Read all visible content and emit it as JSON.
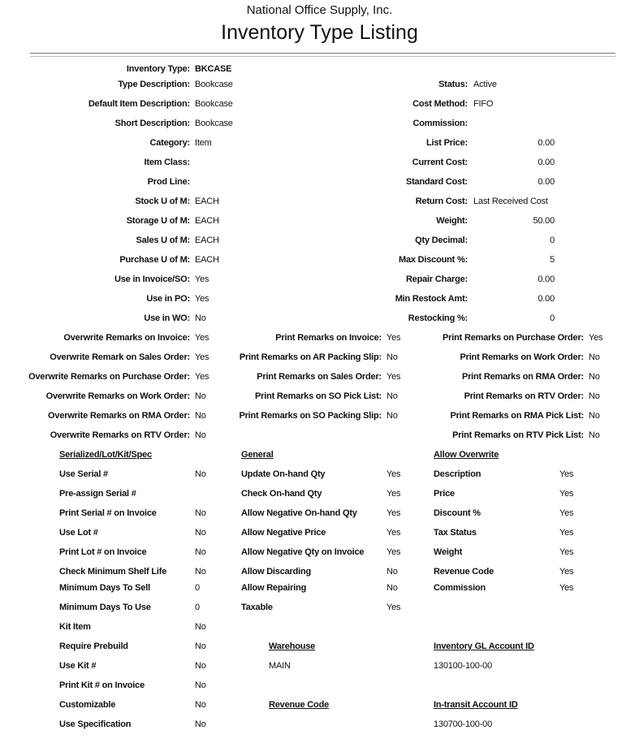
{
  "header": {
    "company": "National Office Supply, Inc.",
    "title": "Inventory Type Listing"
  },
  "details_left": [
    {
      "label": "Inventory Type:",
      "value": "BKCASE"
    },
    {
      "label": "Type Description:",
      "value": "Bookcase"
    },
    {
      "label": "Default Item Description:",
      "value": "Bookcase"
    },
    {
      "label": "Short Description:",
      "value": "Bookcase"
    },
    {
      "label": "Category:",
      "value": "Item"
    },
    {
      "label": "Item Class:",
      "value": ""
    },
    {
      "label": "Prod Line:",
      "value": ""
    },
    {
      "label": "Stock U of M:",
      "value": "EACH"
    },
    {
      "label": "Storage U of M:",
      "value": "EACH"
    },
    {
      "label": "Sales U of M:",
      "value": "EACH"
    },
    {
      "label": "Purchase U of M:",
      "value": "EACH"
    },
    {
      "label": "Use in Invoice/SO:",
      "value": "Yes"
    },
    {
      "label": "Use in PO:",
      "value": "Yes"
    },
    {
      "label": "Use in WO:",
      "value": "No"
    }
  ],
  "details_right": [
    {
      "label": "Status:",
      "value": "Active"
    },
    {
      "label": "Cost Method:",
      "value": "FIFO"
    },
    {
      "label": "Commission:",
      "value": ""
    },
    {
      "label": "List Price:",
      "value": "0.00"
    },
    {
      "label": "Current Cost:",
      "value": "0.00"
    },
    {
      "label": "Standard Cost:",
      "value": "0.00"
    },
    {
      "label": "Return Cost:",
      "value": "Last Received Cost"
    },
    {
      "label": "Weight:",
      "value": "50.00"
    },
    {
      "label": "Qty Decimal:",
      "value": "0"
    },
    {
      "label": "Max Discount %:",
      "value": "5"
    },
    {
      "label": "Repair Charge:",
      "value": "0.00"
    },
    {
      "label": "Min Restock Amt:",
      "value": "0.00"
    },
    {
      "label": "Restocking %:",
      "value": "0"
    }
  ],
  "remarks": [
    [
      {
        "label": "Overwrite Remarks on Invoice:",
        "value": "Yes"
      },
      {
        "label": "Overwrite Remark on Sales Order:",
        "value": "Yes"
      },
      {
        "label": "Overwrite Remarks on Purchase Order:",
        "value": "Yes"
      },
      {
        "label": "Overwrite Remarks on Work Order:",
        "value": "No"
      },
      {
        "label": "Overwrite Remarks on RMA Order:",
        "value": "No"
      },
      {
        "label": "Overwrite Remarks on RTV Order:",
        "value": "No"
      }
    ],
    [
      {
        "label": "Print Remarks on Invoice:",
        "value": "Yes"
      },
      {
        "label": "Print Remarks on AR Packing Slip:",
        "value": "No"
      },
      {
        "label": "Print Remarks on Sales Order:",
        "value": "Yes"
      },
      {
        "label": "Print Remarks on SO Pick List:",
        "value": "No"
      },
      {
        "label": "Print Remarks on SO Packing Slip:",
        "value": "No"
      }
    ],
    [
      {
        "label": "Print Remarks on Purchase Order:",
        "value": "Yes"
      },
      {
        "label": "Print Remarks on Work Order:",
        "value": "No"
      },
      {
        "label": "Print Remarks on RMA Order:",
        "value": "No"
      },
      {
        "label": "Print Remarks on RTV Order:",
        "value": "No"
      },
      {
        "label": "Print Remarks on RMA Pick List:",
        "value": "No"
      },
      {
        "label": "Print Remarks on RTV Pick List:",
        "value": "No"
      }
    ]
  ],
  "serialized": {
    "title": "Serialized/Lot/Kit/Spec",
    "items": [
      {
        "label": "Use Serial #",
        "value": "No"
      },
      {
        "label": "Pre-assign Serial #",
        "value": ""
      },
      {
        "label": "Print Serial # on Invoice",
        "value": "No"
      },
      {
        "label": "Use Lot #",
        "value": "No"
      },
      {
        "label": "Print Lot # on Invoice",
        "value": "No"
      },
      {
        "label": "Check Minimum Shelf Life",
        "value": "No"
      },
      {
        "label": "Minimum Days To Sell",
        "value": "0"
      },
      {
        "label": "Minimum Days To Use",
        "value": "0"
      },
      {
        "label": "Kit Item",
        "value": "No"
      },
      {
        "label": "Require Prebuild",
        "value": "No"
      },
      {
        "label": "Use Kit #",
        "value": "No"
      },
      {
        "label": "Print Kit # on Invoice",
        "value": "No"
      },
      {
        "label": "Customizable",
        "value": "No"
      },
      {
        "label": "Use Specification",
        "value": "No"
      }
    ]
  },
  "general": {
    "title": "General",
    "items": [
      {
        "label": "Update On-hand Qty",
        "value": "Yes"
      },
      {
        "label": "Check On-hand Qty",
        "value": "Yes"
      },
      {
        "label": "Allow Negative On-hand Qty",
        "value": "Yes"
      },
      {
        "label": "Allow Negative Price",
        "value": "Yes"
      },
      {
        "label": "Allow Negative Qty on Invoice",
        "value": "Yes"
      },
      {
        "label": "Allow Discarding",
        "value": "No"
      },
      {
        "label": "Allow Repairing",
        "value": "No"
      },
      {
        "label": "Taxable",
        "value": "Yes"
      }
    ]
  },
  "allow_overwrite": {
    "title": "Allow Overwrite",
    "items": [
      {
        "label": "Description",
        "value": "Yes"
      },
      {
        "label": "Price",
        "value": "Yes"
      },
      {
        "label": "Discount %",
        "value": "Yes"
      },
      {
        "label": "Tax Status",
        "value": "Yes"
      },
      {
        "label": "Weight",
        "value": "Yes"
      },
      {
        "label": "Revenue Code",
        "value": "Yes"
      },
      {
        "label": "Commission",
        "value": "Yes"
      }
    ]
  },
  "accounts": {
    "warehouse": {
      "title": "Warehouse",
      "value": "MAIN"
    },
    "inventory_gl": {
      "title": "Inventory GL Account ID",
      "value": "130100-100-00"
    },
    "revenue_code": {
      "title": "Revenue Code",
      "value": ""
    },
    "intransit": {
      "title": "In-transit Account ID",
      "value": "130700-100-00"
    }
  }
}
